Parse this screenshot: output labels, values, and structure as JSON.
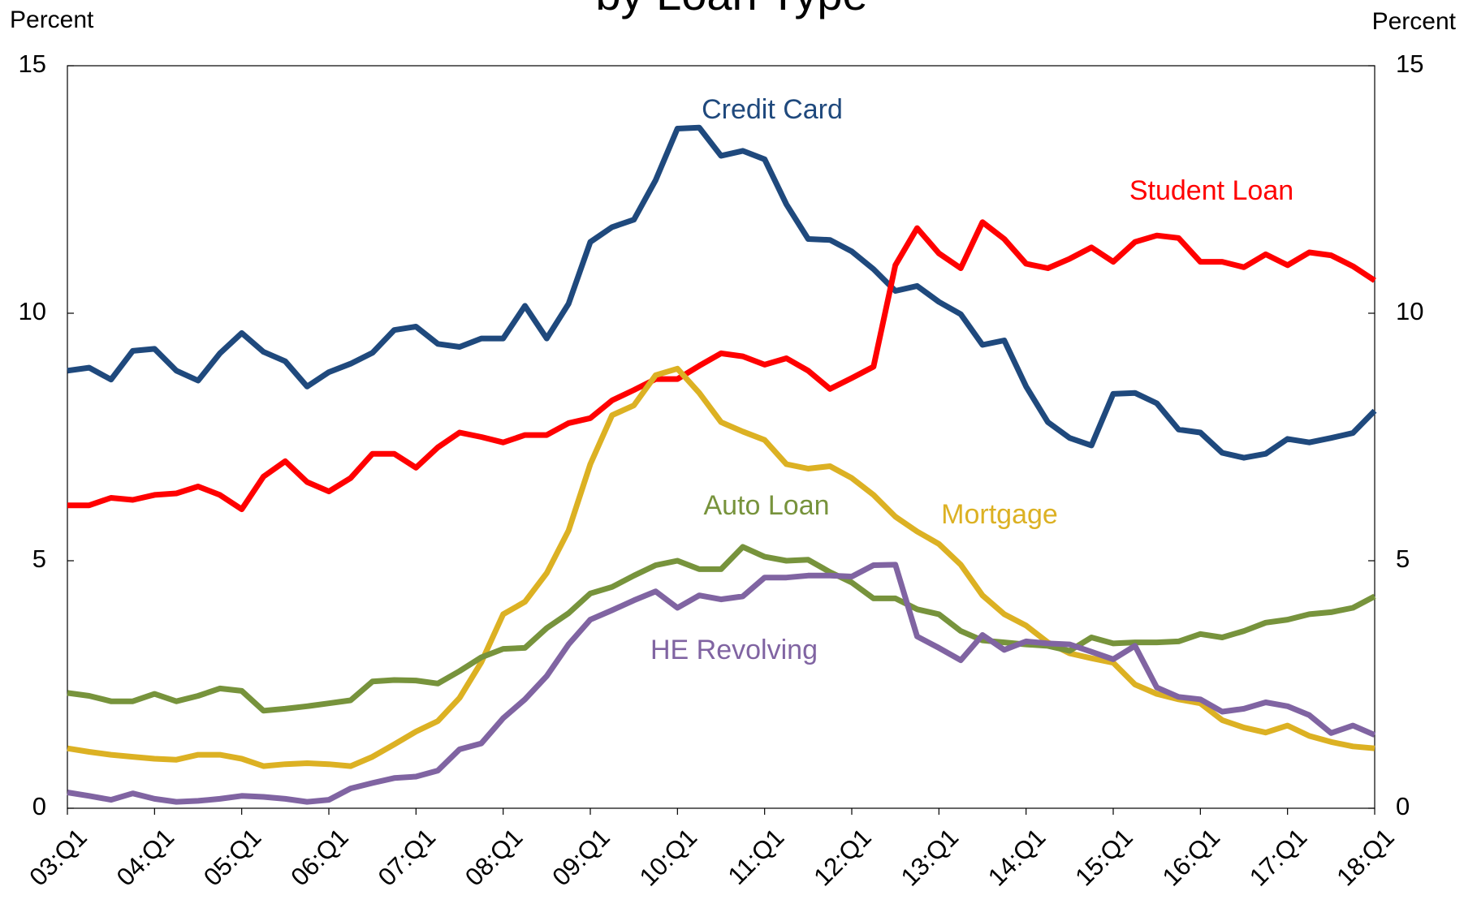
{
  "chart_data": {
    "type": "line",
    "title": "by Loan Type",
    "ylabel": "Percent",
    "y2label": "Percent",
    "categories": [
      "03:Q1",
      null,
      null,
      null,
      "04:Q1",
      null,
      null,
      null,
      "05:Q1",
      null,
      null,
      null,
      "06:Q1",
      null,
      null,
      null,
      "07:Q1",
      null,
      null,
      null,
      "08:Q1",
      null,
      null,
      null,
      "09:Q1",
      null,
      null,
      null,
      "10:Q1",
      null,
      null,
      null,
      "11:Q1",
      null,
      null,
      null,
      "12:Q1",
      null,
      null,
      null,
      "13:Q1",
      null,
      null,
      null,
      "14:Q1",
      null,
      null,
      null,
      "15:Q1",
      null,
      null,
      null,
      "16:Q1",
      null,
      null,
      null,
      "17:Q1",
      null,
      null,
      null,
      "18:Q1"
    ],
    "ylim": [
      0,
      15
    ],
    "yticks": [
      0,
      5,
      10,
      15
    ],
    "y2lim": [
      0,
      15
    ],
    "y2ticks": [
      0,
      5,
      10,
      15
    ],
    "series": [
      {
        "name": "Credit Card",
        "color": "#1f497d",
        "values": [
          8.84,
          8.9,
          8.66,
          9.24,
          9.28,
          8.84,
          8.64,
          9.19,
          9.6,
          9.22,
          9.03,
          8.52,
          8.81,
          8.98,
          9.2,
          9.66,
          9.73,
          9.38,
          9.32,
          9.49,
          9.49,
          10.15,
          9.49,
          10.19,
          11.44,
          11.74,
          11.89,
          12.69,
          13.73,
          13.75,
          13.18,
          13.28,
          13.11,
          12.2,
          11.5,
          11.48,
          11.25,
          10.89,
          10.45,
          10.55,
          10.23,
          9.98,
          9.36,
          9.45,
          8.52,
          7.8,
          7.48,
          7.33,
          8.37,
          8.39,
          8.18,
          7.65,
          7.59,
          7.18,
          7.08,
          7.16,
          7.46,
          7.39,
          7.48,
          7.58,
          8.03
        ]
      },
      {
        "name": "Student Loan",
        "color": "#ff0000",
        "values": [
          6.12,
          6.12,
          6.27,
          6.23,
          6.33,
          6.36,
          6.5,
          6.33,
          6.04,
          6.7,
          7.01,
          6.59,
          6.4,
          6.67,
          7.16,
          7.16,
          6.88,
          7.29,
          7.59,
          7.5,
          7.39,
          7.54,
          7.54,
          7.78,
          7.88,
          8.24,
          8.45,
          8.67,
          8.67,
          8.94,
          9.19,
          9.13,
          8.96,
          9.09,
          8.84,
          8.47,
          8.69,
          8.92,
          10.97,
          11.72,
          11.21,
          10.91,
          11.84,
          11.5,
          11.0,
          10.91,
          11.1,
          11.33,
          11.04,
          11.44,
          11.57,
          11.52,
          11.04,
          11.04,
          10.93,
          11.19,
          10.97,
          11.23,
          11.17,
          10.95,
          10.66
        ]
      },
      {
        "name": "Mortgage",
        "color": "#dcb123",
        "values": [
          1.21,
          1.14,
          1.08,
          1.04,
          1.0,
          0.98,
          1.08,
          1.08,
          1.0,
          0.85,
          0.89,
          0.91,
          0.89,
          0.85,
          1.04,
          1.29,
          1.55,
          1.76,
          2.23,
          2.95,
          3.92,
          4.17,
          4.75,
          5.61,
          6.95,
          7.94,
          8.14,
          8.75,
          8.88,
          8.39,
          7.8,
          7.61,
          7.44,
          6.95,
          6.86,
          6.91,
          6.67,
          6.33,
          5.89,
          5.59,
          5.34,
          4.92,
          4.3,
          3.92,
          3.69,
          3.35,
          3.13,
          3.03,
          2.94,
          2.5,
          2.31,
          2.2,
          2.12,
          1.78,
          1.63,
          1.53,
          1.67,
          1.46,
          1.34,
          1.25,
          1.21
        ]
      },
      {
        "name": "Auto Loan",
        "color": "#77933c",
        "values": [
          2.33,
          2.27,
          2.16,
          2.16,
          2.31,
          2.16,
          2.27,
          2.42,
          2.37,
          1.97,
          2.01,
          2.06,
          2.12,
          2.18,
          2.56,
          2.59,
          2.58,
          2.52,
          2.77,
          3.05,
          3.22,
          3.24,
          3.64,
          3.94,
          4.34,
          4.47,
          4.7,
          4.91,
          5.0,
          4.83,
          4.83,
          5.28,
          5.08,
          5.0,
          5.02,
          4.77,
          4.56,
          4.24,
          4.24,
          4.02,
          3.92,
          3.58,
          3.39,
          3.35,
          3.31,
          3.28,
          3.18,
          3.45,
          3.33,
          3.35,
          3.35,
          3.37,
          3.52,
          3.45,
          3.58,
          3.75,
          3.81,
          3.92,
          3.96,
          4.05,
          4.28
        ]
      },
      {
        "name": "HE Revolving",
        "color": "#8064a2",
        "values": [
          0.32,
          0.25,
          0.17,
          0.3,
          0.19,
          0.13,
          0.15,
          0.19,
          0.25,
          0.23,
          0.19,
          0.13,
          0.17,
          0.4,
          0.51,
          0.61,
          0.64,
          0.76,
          1.19,
          1.31,
          1.82,
          2.2,
          2.67,
          3.31,
          3.81,
          4.0,
          4.2,
          4.38,
          4.05,
          4.3,
          4.22,
          4.28,
          4.66,
          4.66,
          4.7,
          4.7,
          4.68,
          4.91,
          4.92,
          3.47,
          3.24,
          2.99,
          3.5,
          3.2,
          3.37,
          3.33,
          3.31,
          3.16,
          3.01,
          3.28,
          2.44,
          2.25,
          2.2,
          1.95,
          2.01,
          2.14,
          2.06,
          1.88,
          1.52,
          1.67,
          1.48
        ]
      }
    ]
  }
}
